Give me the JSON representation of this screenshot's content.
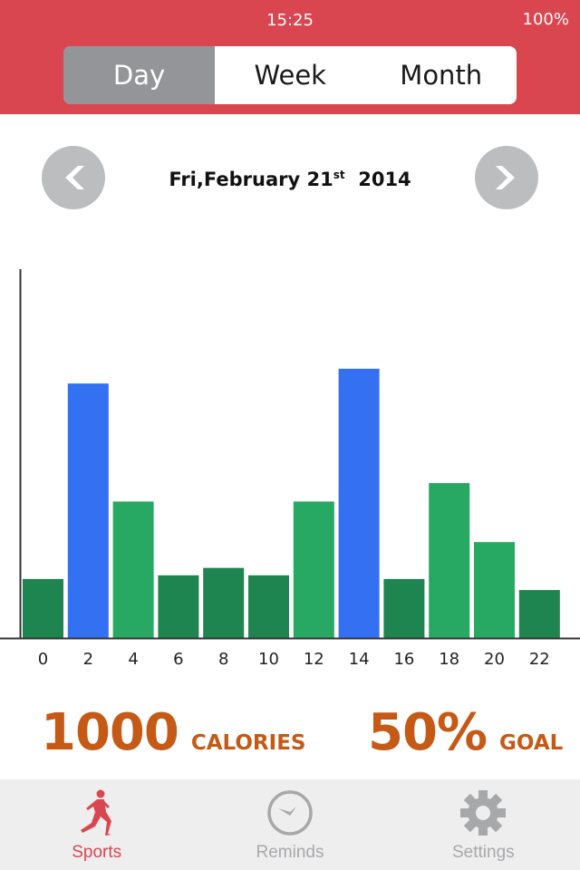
{
  "status_bar": {
    "time": "15:25",
    "battery": "100%"
  },
  "segments": [
    {
      "label": "Day",
      "active": true
    },
    {
      "label": "Week",
      "active": false
    },
    {
      "label": "Month",
      "active": false
    }
  ],
  "date": {
    "main": "Fri,February 21",
    "suffix": "st",
    "year": "2014"
  },
  "chart_data": {
    "type": "bar",
    "categories": [
      "0",
      "2",
      "4",
      "6",
      "8",
      "10",
      "12",
      "14",
      "16",
      "18",
      "20",
      "22"
    ],
    "values": [
      16,
      69,
      37,
      17,
      19,
      17,
      37,
      73,
      16,
      42,
      26,
      13
    ],
    "ylim": [
      0,
      100
    ],
    "grid": false,
    "colors": [
      "#1e8450",
      "#3371f2",
      "#27a863",
      "#1e8450",
      "#1e8450",
      "#1e8450",
      "#27a863",
      "#3371f2",
      "#1e8450",
      "#27a863",
      "#27a863",
      "#1e8450"
    ]
  },
  "stats": {
    "calories_value": "1000",
    "calories_label": "CALORIES",
    "goal_value": "50%",
    "goal_label": "GOAL"
  },
  "tabs": [
    {
      "label": "Sports",
      "icon": "runner-icon",
      "active": true
    },
    {
      "label": "Reminds",
      "icon": "clock-icon"
    },
    {
      "label": "Settings",
      "icon": "gear-icon"
    }
  ],
  "colors": {
    "accent": "#d94650",
    "stat": "#c55a17"
  }
}
